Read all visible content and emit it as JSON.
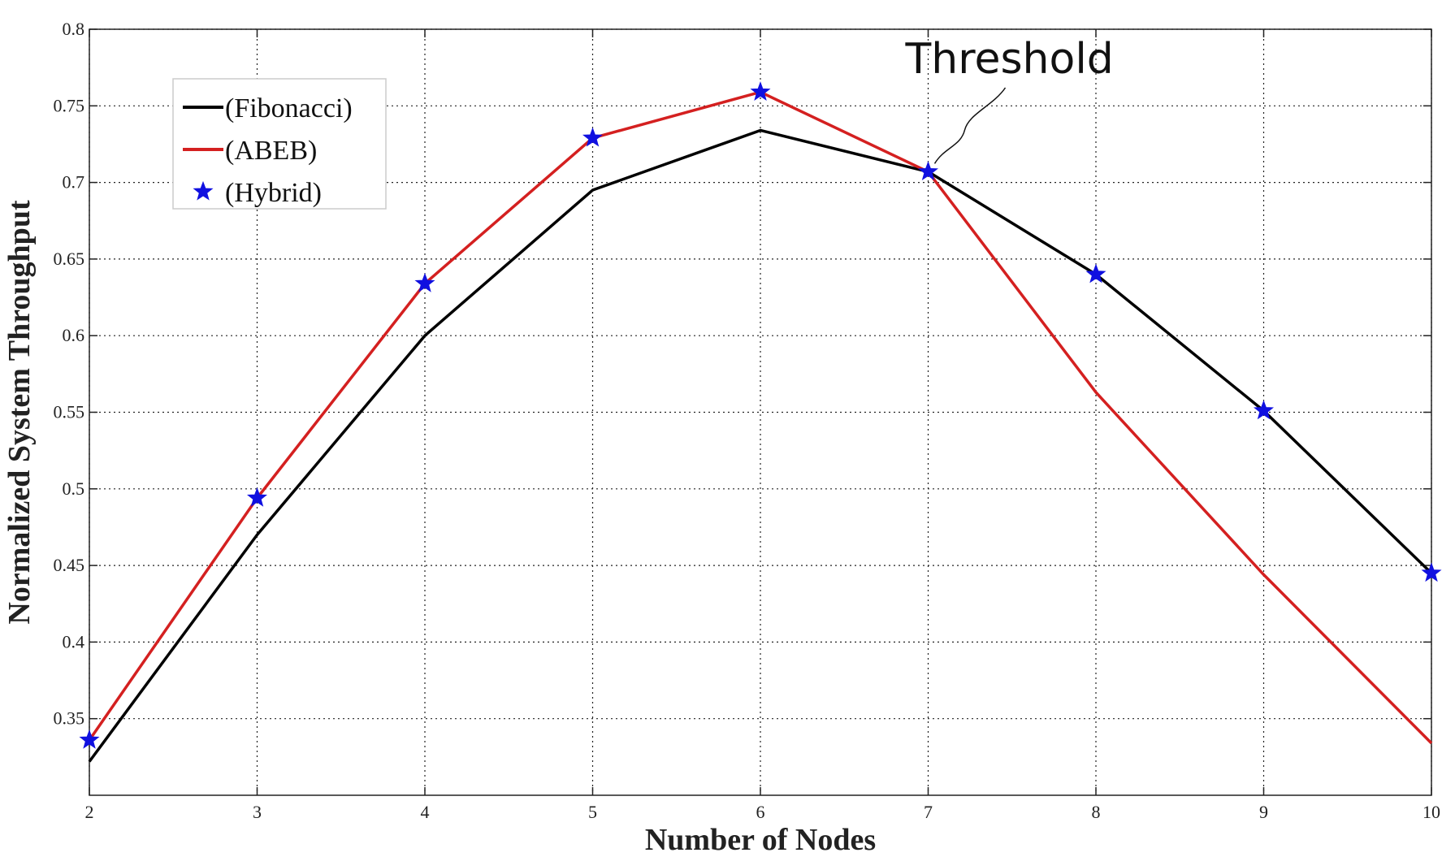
{
  "chart_data": {
    "type": "line",
    "title": "",
    "xlabel": "Number of Nodes",
    "ylabel": "Normalized System Throughput",
    "x": [
      2,
      3,
      4,
      5,
      6,
      7,
      8,
      9,
      10
    ],
    "xlim": [
      2,
      10
    ],
    "ylim": [
      0.3,
      0.8
    ],
    "xticks": [
      "2",
      "3",
      "4",
      "5",
      "6",
      "7",
      "8",
      "9",
      "10"
    ],
    "yticks": [
      "0.35",
      "0.4",
      "0.45",
      "0.5",
      "0.55",
      "0.6",
      "0.65",
      "0.7",
      "0.75",
      "0.8"
    ],
    "grid": true,
    "legend_position": "top-left",
    "series": [
      {
        "name": "(Fibonacci)",
        "color": "#000000",
        "style": "line",
        "values": [
          0.322,
          0.47,
          0.6,
          0.695,
          0.734,
          0.707,
          0.64,
          0.551,
          0.445
        ]
      },
      {
        "name": "(ABEB)",
        "color": "#d42020",
        "style": "line",
        "values": [
          0.336,
          0.494,
          0.634,
          0.729,
          0.759,
          0.707,
          0.563,
          0.444,
          0.334
        ]
      },
      {
        "name": "(Hybrid)",
        "color": "#1010e0",
        "style": "marker",
        "marker": "star-icon",
        "values": [
          0.336,
          0.494,
          0.634,
          0.729,
          0.759,
          0.707,
          0.64,
          0.551,
          0.445
        ]
      }
    ],
    "annotation": {
      "text": "Threshold",
      "x": 7,
      "y": 0.707
    }
  }
}
